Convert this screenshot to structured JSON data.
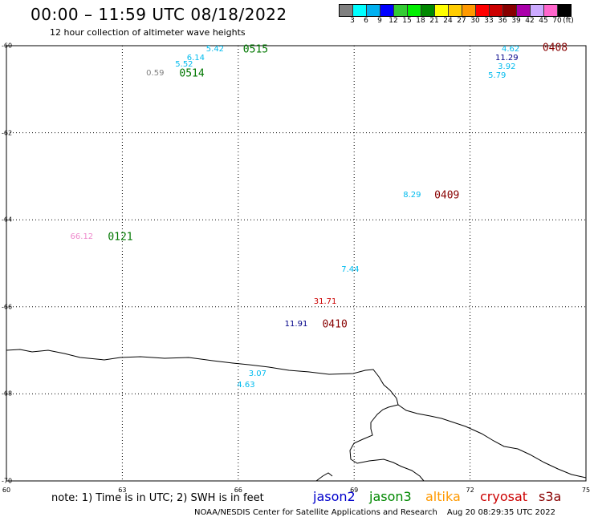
{
  "header": {
    "title": "00:00 – 11:59 UTC 08/18/2022",
    "subtitle": "12 hour collection of altimeter wave heights"
  },
  "scale": {
    "colors": [
      "#808080",
      "#00ffff",
      "#00b0f0",
      "#0000ff",
      "#33cc33",
      "#00ee00",
      "#008800",
      "#ffff00",
      "#ffcc00",
      "#ff9900",
      "#ff0000",
      "#cc0000",
      "#880000",
      "#aa00aa",
      "#ccaaff",
      "#ff66cc",
      "#000000"
    ],
    "labels": [
      "3",
      "6",
      "9",
      "12",
      "15",
      "18",
      "21",
      "24",
      "27",
      "30",
      "33",
      "36",
      "39",
      "42",
      "45",
      "70"
    ],
    "unit": "(ft)"
  },
  "map": {
    "lat_labels": [
      "-60",
      "-62",
      "-64",
      "-66",
      "-68",
      "-70"
    ],
    "lon_labels": [
      "60",
      "63",
      "66",
      "69",
      "72",
      "75"
    ],
    "observations": [
      {
        "text": "5.42",
        "color": "#00bbee",
        "lon": 65.4,
        "lat": -60.1,
        "size": 10
      },
      {
        "text": "0515",
        "color": "#007700",
        "lon": 66.45,
        "lat": -60.1,
        "size": 13
      },
      {
        "text": "6.14",
        "color": "#00bbee",
        "lon": 64.9,
        "lat": -60.3,
        "size": 10
      },
      {
        "text": "5.52",
        "color": "#00bbee",
        "lon": 64.6,
        "lat": -60.45,
        "size": 10
      },
      {
        "text": "0.59",
        "color": "#808080",
        "lon": 63.85,
        "lat": -60.65,
        "size": 10
      },
      {
        "text": "0514",
        "color": "#007700",
        "lon": 64.8,
        "lat": -60.65,
        "size": 13
      },
      {
        "text": "4.62",
        "color": "#00bbee",
        "lon": 73.05,
        "lat": -60.1,
        "size": 10
      },
      {
        "text": "0408",
        "color": "#880000",
        "lon": 74.2,
        "lat": -60.05,
        "size": 13
      },
      {
        "text": "11.29",
        "color": "#000088",
        "lon": 72.95,
        "lat": -60.3,
        "size": 10
      },
      {
        "text": "3.92",
        "color": "#00bbee",
        "lon": 72.95,
        "lat": -60.5,
        "size": 10
      },
      {
        "text": "5.79",
        "color": "#00bbee",
        "lon": 72.7,
        "lat": -60.7,
        "size": 10
      },
      {
        "text": "8.29",
        "color": "#00bbee",
        "lon": 70.5,
        "lat": -63.45,
        "size": 10
      },
      {
        "text": "0409",
        "color": "#880000",
        "lon": 71.4,
        "lat": -63.45,
        "size": 13
      },
      {
        "text": "66.12",
        "color": "#ee88cc",
        "lon": 61.95,
        "lat": -64.4,
        "size": 10
      },
      {
        "text": "0121",
        "color": "#007700",
        "lon": 62.95,
        "lat": -64.4,
        "size": 13
      },
      {
        "text": "7.44",
        "color": "#00bbee",
        "lon": 68.9,
        "lat": -65.15,
        "size": 10
      },
      {
        "text": "31.71",
        "color": "#cc0000",
        "lon": 68.25,
        "lat": -65.9,
        "size": 10
      },
      {
        "text": "11.91",
        "color": "#000088",
        "lon": 67.5,
        "lat": -66.4,
        "size": 10
      },
      {
        "text": "0410",
        "color": "#880000",
        "lon": 68.5,
        "lat": -66.4,
        "size": 13
      },
      {
        "text": "3.07",
        "color": "#00bbee",
        "lon": 66.5,
        "lat": -67.55,
        "size": 10
      },
      {
        "text": "4.63",
        "color": "#00bbee",
        "lon": 66.2,
        "lat": -67.8,
        "size": 10
      }
    ]
  },
  "footer": {
    "note": "note: 1) Time is in UTC; 2) SWH is in feet",
    "legend": [
      {
        "text": "jason2",
        "color": "#0000cc"
      },
      {
        "text": "jason3",
        "color": "#008800"
      },
      {
        "text": "altika",
        "color": "#ff9900"
      },
      {
        "text": "cryosat",
        "color": "#cc0000"
      },
      {
        "text": "s3a",
        "color": "#880000"
      }
    ],
    "credit": "NOAA/NESDIS Center for Satellite Applications and Research",
    "timestamp": "Aug 20 08:29:35 UTC 2022"
  }
}
